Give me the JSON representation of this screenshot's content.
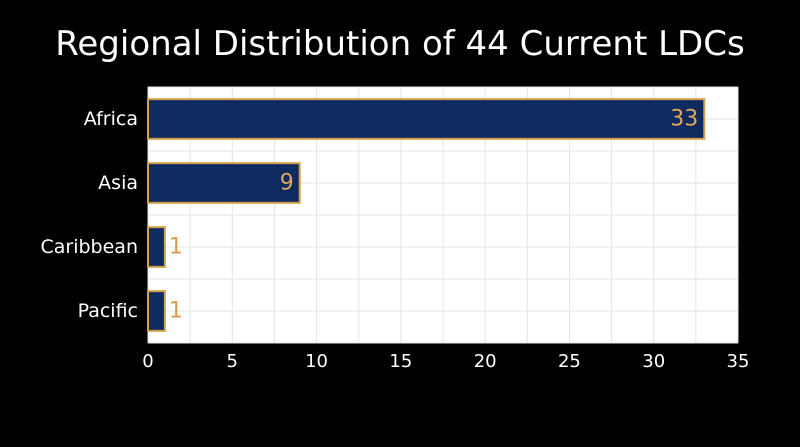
{
  "chart_data": {
    "type": "bar",
    "orientation": "horizontal",
    "title": "Regional Distribution of 44 Current LDCs",
    "categories": [
      "Africa",
      "Asia",
      "Caribbean",
      "Pacific"
    ],
    "values": [
      33,
      9,
      1,
      1
    ],
    "data_labels": [
      "33",
      "9",
      "1",
      "1"
    ],
    "xlim": [
      0,
      35
    ],
    "x_ticks": [
      "0",
      "5",
      "10",
      "15",
      "20",
      "25",
      "30",
      "35"
    ],
    "x_tick_values": [
      0,
      5,
      10,
      15,
      20,
      25,
      30,
      35
    ],
    "grid": true,
    "xlabel": "",
    "ylabel": "",
    "legend": "none"
  },
  "colors": {
    "background": "#000000",
    "plot_background": "#ffffff",
    "bar_fill": "#0e2a5e",
    "bar_edge": "#d4a04c",
    "label_inside": "#e0a85a",
    "label_outside": "#d99a4a",
    "grid": "#e3e3e3",
    "text": "#ffffff"
  }
}
